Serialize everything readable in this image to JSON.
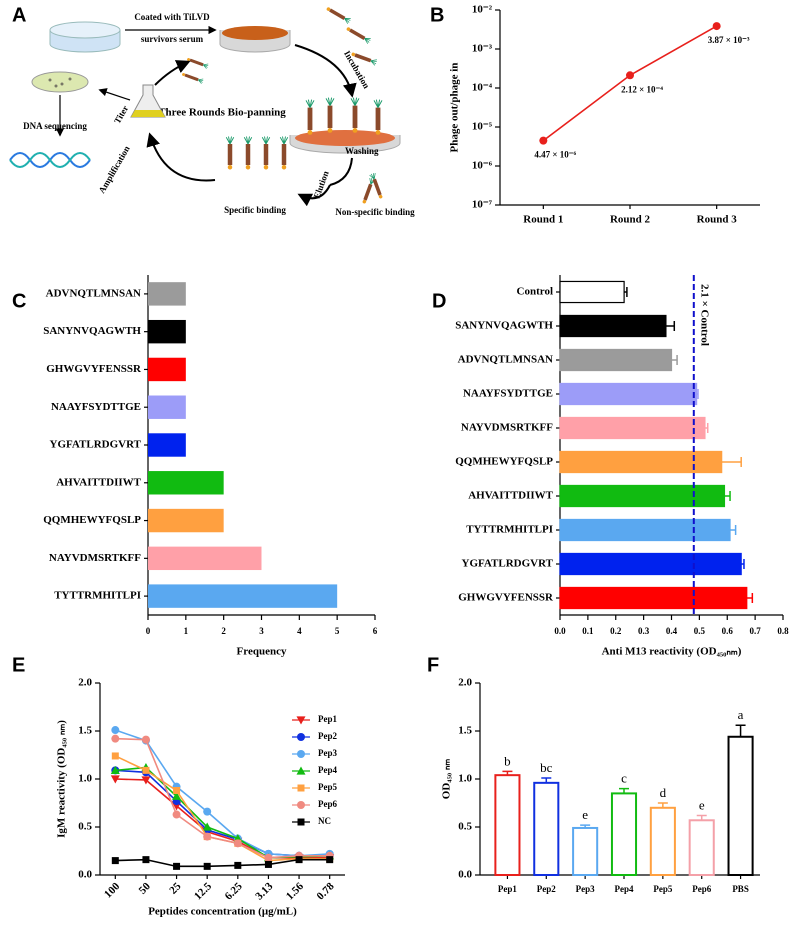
{
  "diagram": {
    "label": "A",
    "coat": [
      "Coated with TiLVD",
      "survivors serum"
    ],
    "incubation": "Incubation",
    "panning": "Three Rounds Bio-panning",
    "titer": "Titer",
    "sequencing": "DNA sequencing",
    "amplification": "Amplification",
    "elution": "Elution",
    "washing": "Washing",
    "specific": "Specific binding",
    "nonspecific": "Non-specific binding"
  },
  "chart_data": [
    {
      "type": "line",
      "label": "B",
      "ylabel": "Phage out/phage in",
      "log_scale": true,
      "color": "#e8201c",
      "categories": [
        "Round 1",
        "Round 2",
        "Round 3"
      ],
      "values": [
        4.47e-06,
        0.000212,
        0.00387
      ],
      "value_labels": [
        "4.47 × 10⁻⁶",
        "2.12 × 10⁻⁴",
        "3.87 × 10⁻³"
      ],
      "ylim": [
        1e-07,
        0.01
      ],
      "yticks": [
        {
          "value": 1e-07,
          "label": "10⁻⁷"
        },
        {
          "value": 1e-06,
          "label": "10⁻⁶"
        },
        {
          "value": 1e-05,
          "label": "10⁻⁵"
        },
        {
          "value": 0.0001,
          "label": "10⁻⁴"
        },
        {
          "value": 0.001,
          "label": "10⁻³"
        },
        {
          "value": 0.01,
          "label": "10⁻²"
        }
      ]
    },
    {
      "type": "hbar",
      "label": "C",
      "xlabel": "Frequency",
      "categories": [
        "ADVNQTLMNSAN",
        "SANYNVQAGWTH",
        "GHWGVYFENSSR",
        "NAAYFSYDTTGE",
        "YGFATLRDGVRT",
        "AHVAITTDIIWT",
        "QQMHEWYFQSLP",
        "NAYVDMSRTKFF",
        "TYTTRMHITLPI"
      ],
      "values": [
        1,
        1,
        1,
        1,
        1,
        2,
        2,
        3,
        5
      ],
      "colors": [
        "#9b9b9b",
        "#000000",
        "#ff0000",
        "#9c9cf8",
        "#0022ee",
        "#11bb11",
        "#ffa040",
        "#ffa0a8",
        "#5aa8f0"
      ],
      "xlim": [
        0,
        6
      ],
      "xticks": [
        0,
        1,
        2,
        3,
        4,
        5,
        6
      ]
    },
    {
      "type": "hbar",
      "label": "D",
      "xlabel": "Anti M13 reactivity (OD₄₅₀ₙₘ)",
      "categories": [
        "Control",
        "SANYNVQAGWTH",
        "ADVNQTLMNSAN",
        "NAAYFSYDTTGE",
        "NAYVDMSRTKFF",
        "QQMHEWYFQSLP",
        "AHVAITTDIIWT",
        "TYTTRMHITLPI",
        "YGFATLRDGVRT",
        "GHWGVYFENSSR"
      ],
      "values": [
        0.23,
        0.38,
        0.4,
        0.49,
        0.52,
        0.58,
        0.59,
        0.61,
        0.65,
        0.67
      ],
      "errors": [
        0.01,
        0.03,
        0.02,
        0.005,
        0.01,
        0.07,
        0.02,
        0.02,
        0.01,
        0.02
      ],
      "colors": [
        "#ffffff",
        "#000000",
        "#9b9b9b",
        "#9c9cf8",
        "#ffa0a8",
        "#ffa040",
        "#11bb11",
        "#5aa8f0",
        "#0022ee",
        "#ff0000"
      ],
      "edgecolors": [
        "#000000",
        "#000000",
        "#9b9b9b",
        "#9c9cf8",
        "#ffa0a8",
        "#ffa040",
        "#11bb11",
        "#5aa8f0",
        "#0022ee",
        "#ff0000"
      ],
      "reference_line": {
        "value": 0.48,
        "label": "2.1 × Control",
        "color": "#1010cc"
      },
      "xlim": [
        0,
        0.8
      ],
      "xticks": [
        {
          "value": 0,
          "label": "0.0"
        },
        0.1,
        0.2,
        0.3,
        0.4,
        0.5,
        0.6,
        0.7,
        0.8
      ]
    },
    {
      "type": "line",
      "label": "E",
      "ylabel": "IgM reactivity (OD₄₅₀ ₙₘ)",
      "xlabel": "Peptides concentration (μg/mL)",
      "legend": "upper right",
      "categories": [
        "100",
        "50",
        "25",
        "12.5",
        "6.25",
        "3.13",
        "1.56",
        "0.78"
      ],
      "series": [
        {
          "name": "Pep1",
          "color": "#e8201c",
          "marker": "triangle-down",
          "values": [
            1.0,
            0.99,
            0.72,
            0.45,
            0.35,
            0.18,
            0.18,
            0.18
          ]
        },
        {
          "name": "Pep2",
          "color": "#1030e0",
          "marker": "circle",
          "values": [
            1.09,
            1.07,
            0.77,
            0.47,
            0.37,
            0.22,
            0.2,
            0.2
          ]
        },
        {
          "name": "Pep3",
          "color": "#5aa8f0",
          "marker": "circle",
          "values": [
            1.51,
            1.4,
            0.92,
            0.66,
            0.38,
            0.22,
            0.2,
            0.22
          ]
        },
        {
          "name": "Pep4",
          "color": "#11bb11",
          "marker": "triangle",
          "values": [
            1.09,
            1.12,
            0.82,
            0.5,
            0.38,
            0.18,
            0.19,
            0.2
          ]
        },
        {
          "name": "Pep5",
          "color": "#ffa040",
          "marker": "square",
          "values": [
            1.24,
            1.09,
            0.88,
            0.4,
            0.33,
            0.15,
            0.17,
            0.17
          ]
        },
        {
          "name": "Pep6",
          "color": "#f08a80",
          "marker": "circle",
          "values": [
            1.42,
            1.41,
            0.63,
            0.4,
            0.33,
            0.18,
            0.2,
            0.2
          ]
        },
        {
          "name": "NC",
          "color": "#000000",
          "marker": "square",
          "values": [
            0.15,
            0.16,
            0.09,
            0.09,
            0.1,
            0.11,
            0.16,
            0.16
          ]
        }
      ],
      "ylim": [
        0,
        2
      ],
      "yticks": [
        {
          "value": 0,
          "label": "0.0"
        },
        0.5,
        {
          "value": 1,
          "label": "1.0"
        },
        1.5,
        {
          "value": 2,
          "label": "2.0"
        }
      ]
    },
    {
      "type": "bar",
      "label": "F",
      "ylabel": "OD₄₅₀ ₙₘ",
      "categories": [
        "Pep1",
        "Pep2",
        "Pep3",
        "Pep4",
        "Pep5",
        "Pep6",
        "PBS"
      ],
      "values": [
        1.04,
        0.96,
        0.49,
        0.85,
        0.7,
        0.57,
        1.44
      ],
      "errors": [
        0.04,
        0.05,
        0.03,
        0.05,
        0.05,
        0.05,
        0.12
      ],
      "letters": [
        "b",
        "bc",
        "e",
        "c",
        "d",
        "e",
        "a"
      ],
      "colors": [
        "#e8201c",
        "#1030e0",
        "#5aa8f0",
        "#11bb11",
        "#ffa040",
        "#f4a0a8",
        "#000000"
      ],
      "ylim": [
        0,
        2
      ],
      "yticks": [
        {
          "value": 0,
          "label": "0.0"
        },
        0.5,
        {
          "value": 1,
          "label": "1.0"
        },
        1.5,
        {
          "value": 2,
          "label": "2.0"
        }
      ]
    }
  ]
}
